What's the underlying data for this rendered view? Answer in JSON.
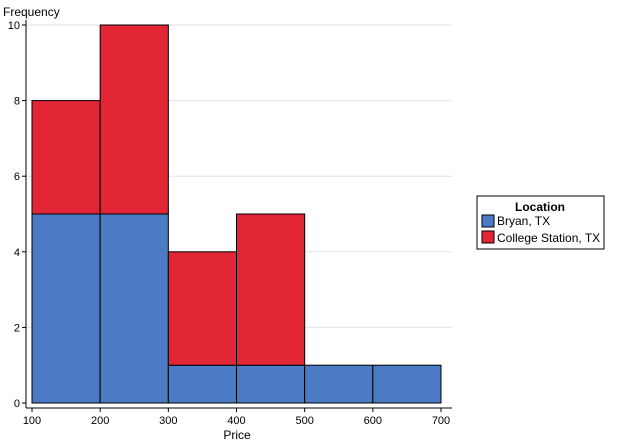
{
  "chart_data": {
    "type": "bar",
    "stacked": true,
    "histogram": true,
    "bins": [
      [
        100,
        200
      ],
      [
        200,
        300
      ],
      [
        300,
        400
      ],
      [
        400,
        500
      ],
      [
        500,
        600
      ],
      [
        600,
        700
      ]
    ],
    "series": [
      {
        "name": "Bryan, TX",
        "color": "#4a7bc4",
        "values": [
          5,
          5,
          1,
          1,
          1,
          1
        ]
      },
      {
        "name": "College Station, TX",
        "color": "#e32636",
        "values": [
          3,
          5,
          3,
          4,
          0,
          0
        ]
      }
    ],
    "xlabel": "Price",
    "ylabel": "Frequency",
    "xlim": [
      100,
      700
    ],
    "ylim": [
      0,
      10
    ],
    "xticks": [
      100,
      200,
      300,
      400,
      500,
      600,
      700
    ],
    "yticks": [
      0,
      2,
      4,
      6,
      8,
      10
    ],
    "grid": "horizontal",
    "legend": {
      "title": "Location",
      "position": "right"
    }
  }
}
